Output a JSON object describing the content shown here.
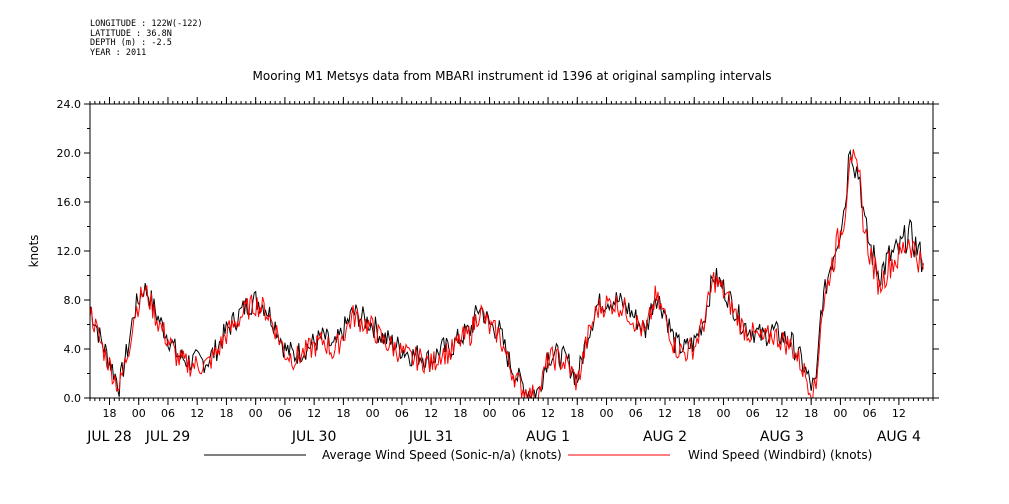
{
  "metadata": [
    "LONGITUDE : 122W(-122)",
    "LATITUDE : 36.8N",
    "DEPTH (m) : -2.5",
    "YEAR : 2011"
  ],
  "chart_data": {
    "type": "line",
    "title": "Mooring M1 Metsys data from MBARI instrument id 1396 at original sampling intervals",
    "ylabel": "knots",
    "ylim": [
      0,
      24
    ],
    "yticks": [
      "0.0",
      "4.0",
      "8.0",
      "12.0",
      "16.0",
      "20.0",
      "24.0"
    ],
    "xlim": [
      "2011-07-28T14:00",
      "2011-08-04T19:00"
    ],
    "hour_ticks": [
      {
        "t": "2011-07-28T18:00",
        "label": "18"
      },
      {
        "t": "2011-07-29T00:00",
        "label": "00"
      },
      {
        "t": "2011-07-29T06:00",
        "label": "06"
      },
      {
        "t": "2011-07-29T12:00",
        "label": "12"
      },
      {
        "t": "2011-07-29T18:00",
        "label": "18"
      },
      {
        "t": "2011-07-30T00:00",
        "label": "00"
      },
      {
        "t": "2011-07-30T06:00",
        "label": "06"
      },
      {
        "t": "2011-07-30T12:00",
        "label": "12"
      },
      {
        "t": "2011-07-30T18:00",
        "label": "18"
      },
      {
        "t": "2011-07-31T00:00",
        "label": "00"
      },
      {
        "t": "2011-07-31T06:00",
        "label": "06"
      },
      {
        "t": "2011-07-31T12:00",
        "label": "12"
      },
      {
        "t": "2011-07-31T18:00",
        "label": "18"
      },
      {
        "t": "2011-08-01T00:00",
        "label": "00"
      },
      {
        "t": "2011-08-01T06:00",
        "label": "06"
      },
      {
        "t": "2011-08-01T12:00",
        "label": "12"
      },
      {
        "t": "2011-08-01T18:00",
        "label": "18"
      },
      {
        "t": "2011-08-02T00:00",
        "label": "00"
      },
      {
        "t": "2011-08-02T06:00",
        "label": "06"
      },
      {
        "t": "2011-08-02T12:00",
        "label": "12"
      },
      {
        "t": "2011-08-02T18:00",
        "label": "18"
      },
      {
        "t": "2011-08-03T00:00",
        "label": "00"
      },
      {
        "t": "2011-08-03T06:00",
        "label": "06"
      },
      {
        "t": "2011-08-03T12:00",
        "label": "12"
      },
      {
        "t": "2011-08-03T18:00",
        "label": "18"
      },
      {
        "t": "2011-08-04T00:00",
        "label": "00"
      },
      {
        "t": "2011-08-04T06:00",
        "label": "06"
      },
      {
        "t": "2011-08-04T12:00",
        "label": "12"
      }
    ],
    "date_labels": [
      {
        "t": "2011-07-28T18:00",
        "label": "JUL 28"
      },
      {
        "t": "2011-07-29T06:00",
        "label": "JUL 29"
      },
      {
        "t": "2011-07-30T12:00",
        "label": "JUL 30"
      },
      {
        "t": "2011-07-31T12:00",
        "label": "JUL 31"
      },
      {
        "t": "2011-08-01T12:00",
        "label": "AUG  1"
      },
      {
        "t": "2011-08-02T12:00",
        "label": "AUG  2"
      },
      {
        "t": "2011-08-03T12:00",
        "label": "AUG  3"
      },
      {
        "t": "2011-08-04T12:00",
        "label": "AUG  4"
      }
    ],
    "legend_position": "bottom",
    "series": [
      {
        "name": "Average Wind Speed (Sonic-n/a) (knots)",
        "color": "#000000",
        "points": [
          [
            "2011-07-28T14:00",
            7.5
          ],
          [
            "2011-07-28T16:00",
            5.0
          ],
          [
            "2011-07-28T18:00",
            3.0
          ],
          [
            "2011-07-28T20:00",
            1.0
          ],
          [
            "2011-07-28T22:00",
            4.5
          ],
          [
            "2011-07-28T23:00",
            7.0
          ],
          [
            "2011-07-29T01:00",
            9.0
          ],
          [
            "2011-07-29T02:00",
            8.5
          ],
          [
            "2011-07-29T04:00",
            6.5
          ],
          [
            "2011-07-29T06:00",
            5.0
          ],
          [
            "2011-07-29T08:00",
            3.5
          ],
          [
            "2011-07-29T10:00",
            3.0
          ],
          [
            "2011-07-29T12:00",
            3.0
          ],
          [
            "2011-07-29T14:00",
            3.0
          ],
          [
            "2011-07-29T16:00",
            4.0
          ],
          [
            "2011-07-29T18:00",
            5.5
          ],
          [
            "2011-07-29T20:00",
            6.5
          ],
          [
            "2011-07-29T22:00",
            7.5
          ],
          [
            "2011-07-30T00:00",
            8.0
          ],
          [
            "2011-07-30T02:00",
            7.5
          ],
          [
            "2011-07-30T04:00",
            6.0
          ],
          [
            "2011-07-30T06:00",
            4.0
          ],
          [
            "2011-07-30T08:00",
            3.5
          ],
          [
            "2011-07-30T10:00",
            4.0
          ],
          [
            "2011-07-30T12:00",
            4.5
          ],
          [
            "2011-07-30T14:00",
            5.0
          ],
          [
            "2011-07-30T16:00",
            4.0
          ],
          [
            "2011-07-30T18:00",
            5.5
          ],
          [
            "2011-07-30T20:00",
            7.0
          ],
          [
            "2011-07-30T22:00",
            6.5
          ],
          [
            "2011-07-31T00:00",
            6.0
          ],
          [
            "2011-07-31T02:00",
            5.0
          ],
          [
            "2011-07-31T04:00",
            4.5
          ],
          [
            "2011-07-31T06:00",
            4.0
          ],
          [
            "2011-07-31T08:00",
            3.5
          ],
          [
            "2011-07-31T10:00",
            3.5
          ],
          [
            "2011-07-31T12:00",
            3.0
          ],
          [
            "2011-07-31T14:00",
            4.0
          ],
          [
            "2011-07-31T16:00",
            4.0
          ],
          [
            "2011-07-31T18:00",
            5.0
          ],
          [
            "2011-07-31T20:00",
            5.5
          ],
          [
            "2011-07-31T22:00",
            7.5
          ],
          [
            "2011-08-01T00:00",
            6.0
          ],
          [
            "2011-08-01T02:00",
            5.5
          ],
          [
            "2011-08-01T04:00",
            3.0
          ],
          [
            "2011-08-01T06:00",
            1.5
          ],
          [
            "2011-08-01T08:00",
            0.5
          ],
          [
            "2011-08-01T10:00",
            0.5
          ],
          [
            "2011-08-01T12:00",
            3.5
          ],
          [
            "2011-08-01T14:00",
            3.5
          ],
          [
            "2011-08-01T16:00",
            3.0
          ],
          [
            "2011-08-01T18:00",
            1.5
          ],
          [
            "2011-08-01T20:00",
            5.0
          ],
          [
            "2011-08-01T22:00",
            7.5
          ],
          [
            "2011-08-02T00:00",
            8.0
          ],
          [
            "2011-08-02T02:00",
            8.0
          ],
          [
            "2011-08-02T04:00",
            7.5
          ],
          [
            "2011-08-02T06:00",
            6.5
          ],
          [
            "2011-08-02T08:00",
            5.5
          ],
          [
            "2011-08-02T10:00",
            8.5
          ],
          [
            "2011-08-02T12:00",
            7.0
          ],
          [
            "2011-08-02T14:00",
            4.5
          ],
          [
            "2011-08-02T16:00",
            4.0
          ],
          [
            "2011-08-02T18:00",
            4.5
          ],
          [
            "2011-08-02T20:00",
            6.5
          ],
          [
            "2011-08-02T22:00",
            10.0
          ],
          [
            "2011-08-03T00:00",
            9.0
          ],
          [
            "2011-08-03T02:00",
            7.5
          ],
          [
            "2011-08-03T04:00",
            6.0
          ],
          [
            "2011-08-03T06:00",
            5.5
          ],
          [
            "2011-08-03T08:00",
            5.0
          ],
          [
            "2011-08-03T10:00",
            5.5
          ],
          [
            "2011-08-03T12:00",
            5.0
          ],
          [
            "2011-08-03T14:00",
            4.5
          ],
          [
            "2011-08-03T16:00",
            3.0
          ],
          [
            "2011-08-03T18:00",
            1.0
          ],
          [
            "2011-08-03T19:00",
            1.0
          ],
          [
            "2011-08-03T20:00",
            7.0
          ],
          [
            "2011-08-03T22:00",
            11.0
          ],
          [
            "2011-08-04T00:00",
            14.0
          ],
          [
            "2011-08-04T01:00",
            16.0
          ],
          [
            "2011-08-04T02:00",
            21.0
          ],
          [
            "2011-08-04T03:00",
            19.0
          ],
          [
            "2011-08-04T04:00",
            18.0
          ],
          [
            "2011-08-04T05:00",
            14.0
          ],
          [
            "2011-08-04T06:00",
            12.5
          ],
          [
            "2011-08-04T08:00",
            10.0
          ],
          [
            "2011-08-04T10:00",
            11.5
          ],
          [
            "2011-08-04T12:00",
            12.0
          ],
          [
            "2011-08-04T14:00",
            13.5
          ],
          [
            "2011-08-04T16:00",
            12.0
          ],
          [
            "2011-08-04T17:00",
            11.0
          ]
        ]
      },
      {
        "name": "Wind Speed (Windbird) (knots)",
        "color": "#ff0000",
        "points": [
          [
            "2011-07-28T14:00",
            7.2
          ],
          [
            "2011-07-28T16:00",
            4.7
          ],
          [
            "2011-07-28T18:00",
            2.7
          ],
          [
            "2011-07-28T20:00",
            0.8
          ],
          [
            "2011-07-28T22:00",
            4.2
          ],
          [
            "2011-07-28T23:00",
            6.7
          ],
          [
            "2011-07-29T01:00",
            8.8
          ],
          [
            "2011-07-29T02:00",
            8.2
          ],
          [
            "2011-07-29T04:00",
            6.2
          ],
          [
            "2011-07-29T06:00",
            4.7
          ],
          [
            "2011-07-29T08:00",
            3.2
          ],
          [
            "2011-07-29T10:00",
            2.7
          ],
          [
            "2011-07-29T12:00",
            2.7
          ],
          [
            "2011-07-29T14:00",
            2.7
          ],
          [
            "2011-07-29T16:00",
            3.7
          ],
          [
            "2011-07-29T18:00",
            5.2
          ],
          [
            "2011-07-29T20:00",
            6.2
          ],
          [
            "2011-07-29T22:00",
            7.2
          ],
          [
            "2011-07-30T00:00",
            7.7
          ],
          [
            "2011-07-30T02:00",
            7.2
          ],
          [
            "2011-07-30T04:00",
            5.7
          ],
          [
            "2011-07-30T06:00",
            3.7
          ],
          [
            "2011-07-30T08:00",
            3.2
          ],
          [
            "2011-07-30T10:00",
            3.7
          ],
          [
            "2011-07-30T12:00",
            4.2
          ],
          [
            "2011-07-30T14:00",
            4.7
          ],
          [
            "2011-07-30T16:00",
            3.7
          ],
          [
            "2011-07-30T18:00",
            5.2
          ],
          [
            "2011-07-30T20:00",
            6.7
          ],
          [
            "2011-07-30T22:00",
            6.2
          ],
          [
            "2011-07-31T00:00",
            5.7
          ],
          [
            "2011-07-31T02:00",
            4.7
          ],
          [
            "2011-07-31T04:00",
            4.2
          ],
          [
            "2011-07-31T06:00",
            3.7
          ],
          [
            "2011-07-31T08:00",
            3.2
          ],
          [
            "2011-07-31T10:00",
            3.2
          ],
          [
            "2011-07-31T12:00",
            2.7
          ],
          [
            "2011-07-31T14:00",
            3.7
          ],
          [
            "2011-07-31T16:00",
            3.7
          ],
          [
            "2011-07-31T18:00",
            4.7
          ],
          [
            "2011-07-31T20:00",
            5.2
          ],
          [
            "2011-07-31T22:00",
            7.2
          ],
          [
            "2011-08-01T00:00",
            5.7
          ],
          [
            "2011-08-01T02:00",
            5.2
          ],
          [
            "2011-08-01T04:00",
            2.7
          ],
          [
            "2011-08-01T06:00",
            1.2
          ],
          [
            "2011-08-01T08:00",
            0.2
          ],
          [
            "2011-08-01T10:00",
            0.2
          ],
          [
            "2011-08-01T12:00",
            3.2
          ],
          [
            "2011-08-01T14:00",
            3.2
          ],
          [
            "2011-08-01T16:00",
            2.7
          ],
          [
            "2011-08-01T18:00",
            1.2
          ],
          [
            "2011-08-01T20:00",
            4.7
          ],
          [
            "2011-08-01T22:00",
            7.2
          ],
          [
            "2011-08-02T00:00",
            7.7
          ],
          [
            "2011-08-02T02:00",
            7.7
          ],
          [
            "2011-08-02T04:00",
            7.2
          ],
          [
            "2011-08-02T06:00",
            6.2
          ],
          [
            "2011-08-02T08:00",
            5.2
          ],
          [
            "2011-08-02T10:00",
            8.2
          ],
          [
            "2011-08-02T12:00",
            6.7
          ],
          [
            "2011-08-02T14:00",
            4.2
          ],
          [
            "2011-08-02T16:00",
            3.7
          ],
          [
            "2011-08-02T18:00",
            4.2
          ],
          [
            "2011-08-02T20:00",
            6.2
          ],
          [
            "2011-08-02T22:00",
            9.7
          ],
          [
            "2011-08-03T00:00",
            8.7
          ],
          [
            "2011-08-03T02:00",
            7.2
          ],
          [
            "2011-08-03T04:00",
            5.7
          ],
          [
            "2011-08-03T06:00",
            5.2
          ],
          [
            "2011-08-03T08:00",
            4.7
          ],
          [
            "2011-08-03T10:00",
            5.2
          ],
          [
            "2011-08-03T12:00",
            4.7
          ],
          [
            "2011-08-03T14:00",
            4.2
          ],
          [
            "2011-08-03T16:00",
            2.7
          ],
          [
            "2011-08-03T18:00",
            0.7
          ],
          [
            "2011-08-03T19:00",
            0.7
          ],
          [
            "2011-08-03T20:00",
            6.5
          ],
          [
            "2011-08-03T22:00",
            10.5
          ],
          [
            "2011-08-04T00:00",
            13.5
          ],
          [
            "2011-08-04T01:00",
            15.5
          ],
          [
            "2011-08-04T02:00",
            20.5
          ],
          [
            "2011-08-04T03:00",
            18.5
          ],
          [
            "2011-08-04T04:00",
            17.5
          ],
          [
            "2011-08-04T05:00",
            13.5
          ],
          [
            "2011-08-04T06:00",
            12.0
          ],
          [
            "2011-08-04T08:00",
            9.0
          ],
          [
            "2011-08-04T10:00",
            11.0
          ],
          [
            "2011-08-04T12:00",
            11.5
          ],
          [
            "2011-08-04T14:00",
            13.0
          ],
          [
            "2011-08-04T16:00",
            11.5
          ],
          [
            "2011-08-04T17:00",
            10.5
          ]
        ]
      }
    ]
  }
}
